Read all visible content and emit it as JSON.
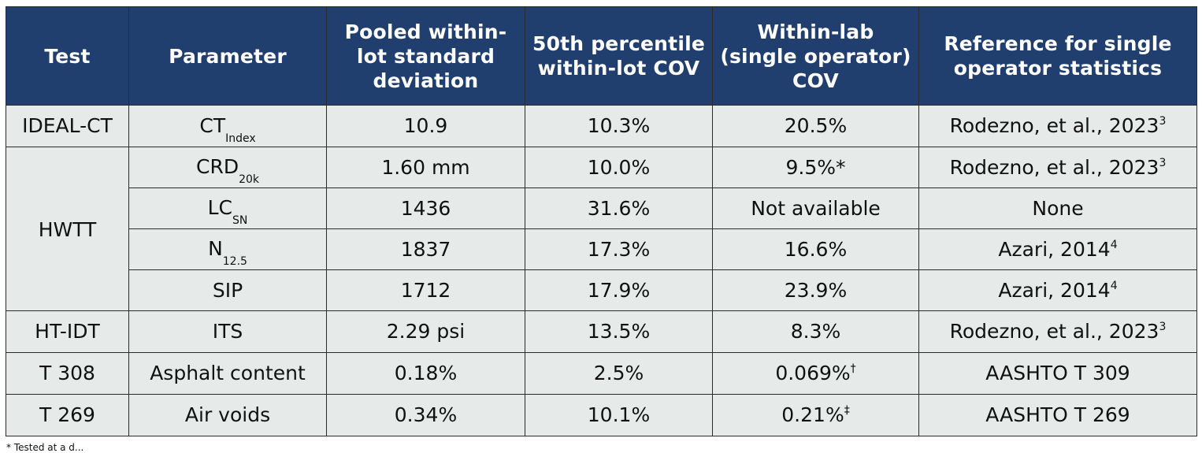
{
  "headers": [
    "Test",
    "Parameter",
    "Pooled within-lot standard deviation",
    "50th percentile within-lot COV",
    "Within-lab (single operator) COV",
    "Reference for single operator statistics"
  ],
  "groups": {
    "ideal_ct": "IDEAL-CT",
    "hwtt": "HWTT",
    "ht_idt": "HT-IDT",
    "t308": "T 308",
    "t269": "T 269"
  },
  "rows": [
    {
      "param_main": "CT",
      "param_sub": "Index",
      "std": "10.9",
      "cov50": "10.3%",
      "cov_lab": "20.5%",
      "ref_text": "Rodezno, et al., 2023",
      "ref_sup": "3"
    },
    {
      "param_main": "CRD",
      "param_sub": "20k",
      "std": "1.60 mm",
      "cov50": "10.0%",
      "cov_lab": "9.5%*",
      "ref_text": "Rodezno, et al., 2023",
      "ref_sup": "3"
    },
    {
      "param_main": "LC",
      "param_sub": "SN",
      "std": "1436",
      "cov50": "31.6%",
      "cov_lab": "Not available",
      "ref_text": "None",
      "ref_sup": ""
    },
    {
      "param_main": "N",
      "param_sub": "12.5",
      "std": "1837",
      "cov50": "17.3%",
      "cov_lab": "16.6%",
      "ref_text": "Azari, 2014",
      "ref_sup": "4"
    },
    {
      "param_main": "SIP",
      "param_sub": "",
      "std": "1712",
      "cov50": "17.9%",
      "cov_lab": "23.9%",
      "ref_text": "Azari, 2014",
      "ref_sup": "4"
    },
    {
      "param_main": "ITS",
      "param_sub": "",
      "std": "2.29 psi",
      "cov50": "13.5%",
      "cov_lab": "8.3%",
      "ref_text": "Rodezno, et al., 2023",
      "ref_sup": "3"
    },
    {
      "param_main": "Asphalt content",
      "param_sub": "",
      "std": "0.18%",
      "cov50": "2.5%",
      "cov_lab": "0.069%",
      "cov_lab_sup": "†",
      "ref_text": "AASHTO T 309",
      "ref_sup": ""
    },
    {
      "param_main": "Air voids",
      "param_sub": "",
      "std": "0.34%",
      "cov50": "10.1%",
      "cov_lab": "0.21%",
      "cov_lab_sup": "‡",
      "ref_text": "AASHTO T 269",
      "ref_sup": ""
    }
  ],
  "footnote": "* Tested at a d..."
}
